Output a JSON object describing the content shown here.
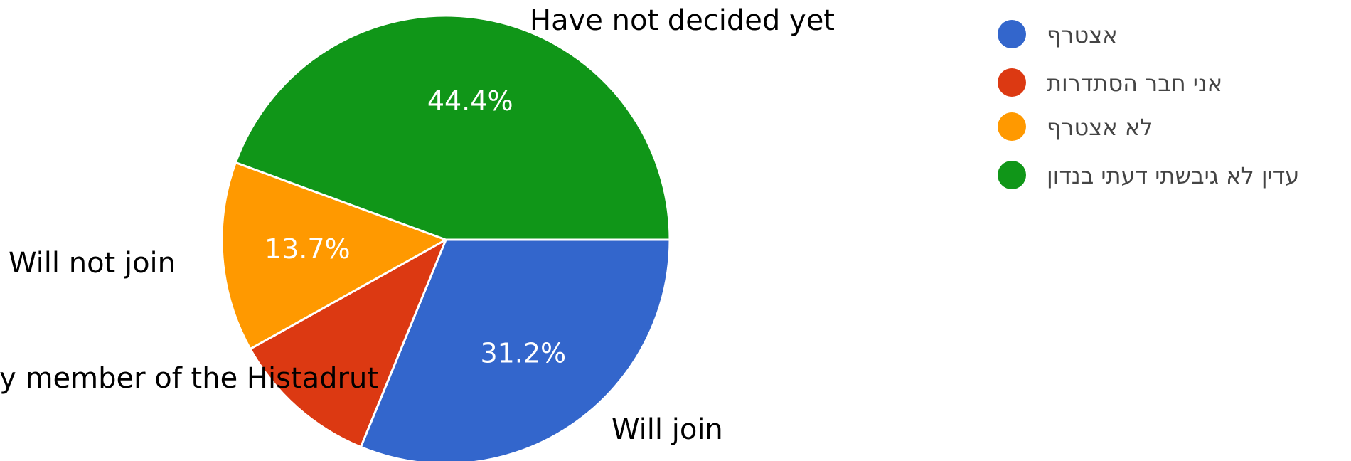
{
  "chart_data": {
    "type": "pie",
    "title": "",
    "slices": [
      {
        "label": "אצטרף",
        "value": 31.2,
        "display": "31.2%",
        "color": "#3366cc",
        "annotation": "Will join"
      },
      {
        "label": "אני חבר הסתדרות",
        "value": 10.7,
        "display": "",
        "color": "#dc3912",
        "annotation": "Already member of the Histadrut"
      },
      {
        "label": "לא אצטרף",
        "value": 13.7,
        "display": "13.7%",
        "color": "#ff9900",
        "annotation": "Will not join"
      },
      {
        "label": "עדין לא גיבשתי דעתי בנדון",
        "value": 44.4,
        "display": "44.4%",
        "color": "#109618",
        "annotation": "Have not decided yet"
      }
    ],
    "legend_position": "right"
  }
}
